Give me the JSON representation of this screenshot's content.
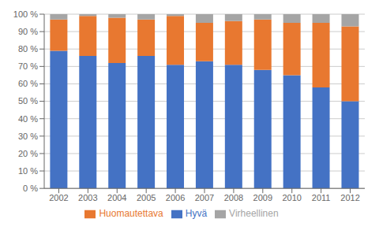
{
  "chart_data": {
    "type": "bar",
    "stacked": true,
    "categories": [
      "2002",
      "2003",
      "2004",
      "2005",
      "2006",
      "2007",
      "2008",
      "2009",
      "2010",
      "2011",
      "2012"
    ],
    "series": [
      {
        "name": "Hyvä",
        "color": "#4472C4",
        "values": [
          79,
          76,
          72,
          76,
          71,
          73,
          71,
          68,
          65,
          58,
          50
        ]
      },
      {
        "name": "Huomautettava",
        "color": "#E87830",
        "values": [
          18,
          23,
          26,
          21,
          28,
          22,
          25,
          29,
          30,
          37,
          43
        ]
      },
      {
        "name": "Virheellinen",
        "color": "#A5A5A5",
        "values": [
          3,
          1,
          2,
          3,
          1,
          5,
          4,
          3,
          5,
          5,
          7
        ]
      }
    ],
    "ylim": [
      0,
      100
    ],
    "yticks": [
      {
        "value": 0,
        "label": "0 %"
      },
      {
        "value": 10,
        "label": "10 %"
      },
      {
        "value": 20,
        "label": "20 %"
      },
      {
        "value": 30,
        "label": "30 %"
      },
      {
        "value": 40,
        "label": "40 %"
      },
      {
        "value": 50,
        "label": "50 %"
      },
      {
        "value": 60,
        "label": "60 %"
      },
      {
        "value": 70,
        "label": "70 %"
      },
      {
        "value": 80,
        "label": "80 %"
      },
      {
        "value": 90,
        "label": "90 %"
      },
      {
        "value": 100,
        "label": "100 %"
      }
    ],
    "grid": true,
    "legend": "bottom"
  }
}
